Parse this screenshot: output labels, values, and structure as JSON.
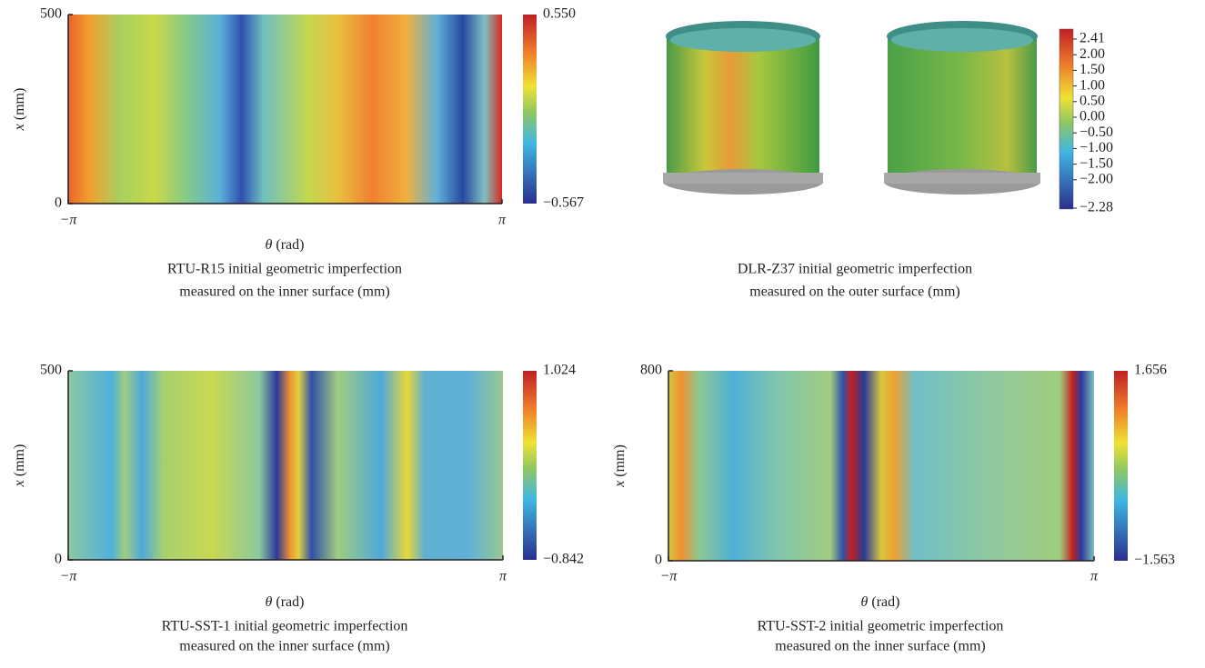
{
  "panels": [
    {
      "ylabel_var": "x",
      "ylabel_unit": "(mm)",
      "yticks": [
        "500",
        "0"
      ],
      "xticks": [
        "−π",
        "π"
      ],
      "xlabel_var": "θ",
      "xlabel_unit": "(rad)",
      "colorbar": [
        "0.550",
        "−0.567"
      ],
      "caption": [
        "RTU-R15 initial geometric imperfection",
        "measured on the inner surface (mm)"
      ]
    },
    {
      "colorbar": [
        "2.41",
        "2.00",
        "1.50",
        "1.00",
        "0.50",
        "0.00",
        "−0.50",
        "−1.00",
        "−1.50",
        "−2.00",
        "−2.28"
      ],
      "caption": [
        "DLR-Z37 initial geometric imperfection",
        "measured on the outer surface (mm)"
      ]
    },
    {
      "ylabel_var": "x",
      "ylabel_unit": "(mm)",
      "yticks": [
        "500",
        "0"
      ],
      "xticks": [
        "−π",
        "π"
      ],
      "xlabel_var": "θ",
      "xlabel_unit": "(rad)",
      "colorbar": [
        "1.024",
        "−0.842"
      ],
      "caption": [
        "RTU-SST-1 initial geometric imperfection",
        "measured on the inner surface (mm)"
      ]
    },
    {
      "ylabel_var": "x",
      "ylabel_unit": "(mm)",
      "yticks": [
        "800",
        "0"
      ],
      "xticks": [
        "−π",
        "π"
      ],
      "xlabel_var": "θ",
      "xlabel_unit": "(rad)",
      "colorbar": [
        "1.656",
        "−1.563"
      ],
      "caption": [
        "RTU-SST-2 initial geometric imperfection",
        "measured on the inner surface (mm)"
      ]
    }
  ]
}
